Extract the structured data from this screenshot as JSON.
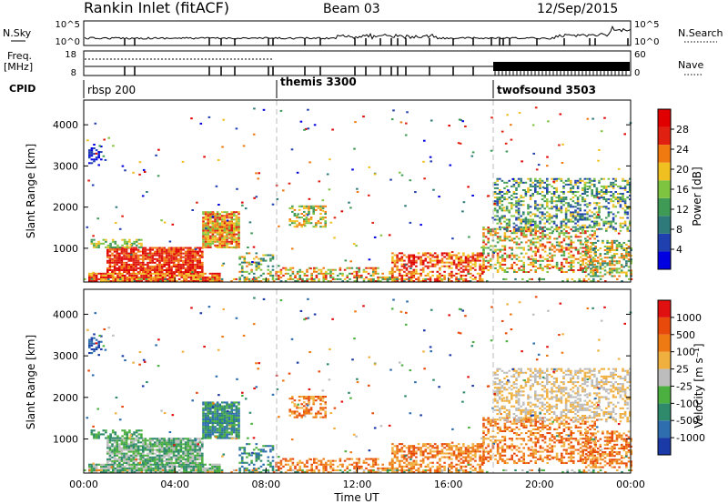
{
  "header": {
    "station": "Rankin Inlet (fitACF)",
    "beam": "Beam 03",
    "date": "12/Sep/2015"
  },
  "chart_data": [
    {
      "type": "line",
      "panel": "noise",
      "left_label": "N.Sky",
      "right_label": "N.Search",
      "left_ticks": [
        "10^5",
        "10^0"
      ],
      "right_ticks": [
        "10^5",
        "10^0"
      ]
    },
    {
      "type": "line",
      "panel": "frequency-nave",
      "left_label": "Freq.",
      "left_unit": "[MHz]",
      "right_label": "Nave",
      "left_ticks": [
        "18",
        "8"
      ],
      "right_ticks": [
        "60",
        "0"
      ]
    },
    {
      "type": "table",
      "panel": "cpid",
      "label": "CPID",
      "segments": [
        {
          "name": "rbsp 200",
          "start_hour": 0
        },
        {
          "name": "themis 3300",
          "start_hour": 8.4
        },
        {
          "name": "twofsound 3503",
          "start_hour": 18
        }
      ]
    },
    {
      "type": "heatmap",
      "panel": "power",
      "xlabel": "",
      "ylabel": "Slant Range [km]",
      "yticks": [
        1000,
        2000,
        3000,
        4000
      ],
      "ylim": [
        180,
        4600
      ],
      "xlim": [
        0,
        24
      ],
      "colorbar_label": "Power [dB]",
      "colorbar_ticks": [
        "28",
        "24",
        "20",
        "16",
        "12",
        "8",
        "4"
      ],
      "colors": [
        "#0000e0",
        "#2040b0",
        "#2e7a7a",
        "#3f9a55",
        "#7fc440",
        "#f0c020",
        "#f07a10",
        "#e02010",
        "#e00000"
      ]
    },
    {
      "type": "heatmap",
      "panel": "velocity",
      "xlabel": "Time UT",
      "ylabel": "Slant Range [km]",
      "xticks": [
        "00:00",
        "04:00",
        "08:00",
        "12:00",
        "16:00",
        "20:00",
        "00:00"
      ],
      "yticks": [
        1000,
        2000,
        3000,
        4000
      ],
      "ylim": [
        180,
        4600
      ],
      "xlim": [
        0,
        24
      ],
      "colorbar_label": "Velocity [m s⁻¹]",
      "colorbar_ticks": [
        "1000",
        "500",
        "100",
        "25",
        "-25",
        "-100",
        "-500",
        "-1000"
      ],
      "colors": [
        "#1a3aa8",
        "#2e6eae",
        "#2e8a6a",
        "#4cb040",
        "#bdbdbd",
        "#f0b040",
        "#ee7a14",
        "#e84a0c",
        "#e01010"
      ]
    }
  ]
}
